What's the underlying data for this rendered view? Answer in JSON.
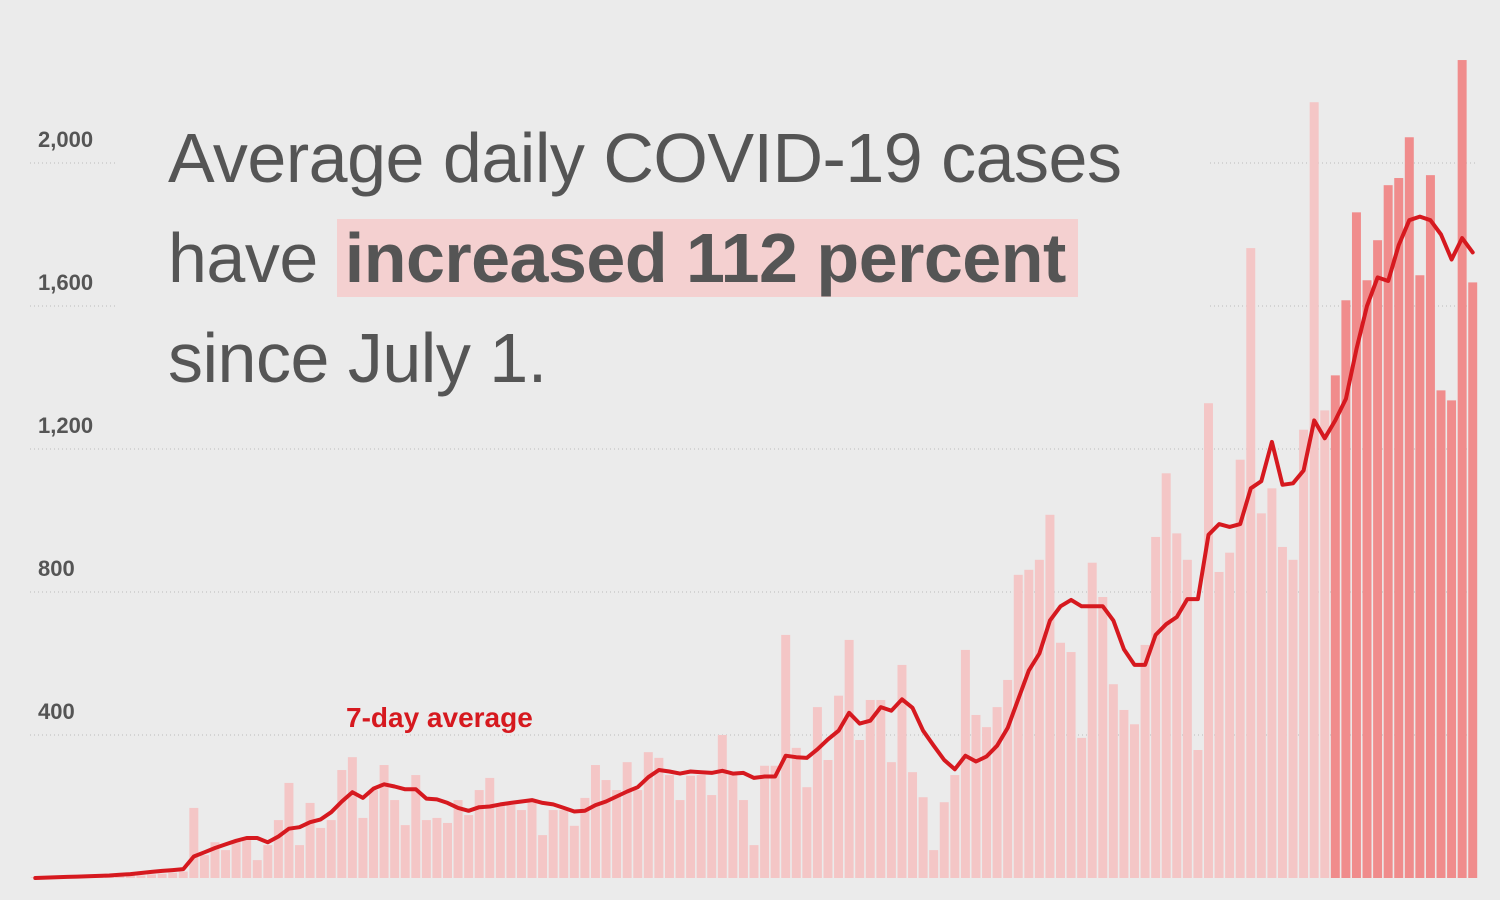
{
  "chart_data": {
    "type": "bar",
    "title_parts": [
      "Average daily COVID-19 cases",
      "have",
      "increased 112 percent",
      "since July 1."
    ],
    "annotation": "7-day average",
    "ylim": [
      0,
      2400
    ],
    "yticks": [
      400,
      800,
      {
        "value": 1200,
        "label": "1,200"
      },
      {
        "value": 1600,
        "label": "1,600"
      },
      {
        "value": 2000,
        "label": "2,000"
      }
    ],
    "grid": true,
    "series": [
      {
        "type": "bar",
        "color": "#f4c6c6",
        "values": [
          2,
          3,
          2,
          4,
          3,
          5,
          4,
          6,
          5,
          8,
          7,
          10,
          12,
          15,
          18,
          196,
          64,
          100,
          78,
          106,
          112,
          50,
          92,
          162,
          266,
          92,
          210,
          140,
          162,
          302,
          338,
          168,
          246,
          316,
          218,
          148,
          288,
          162,
          168,
          154,
          218,
          176,
          246,
          280,
          204,
          204,
          190,
          218,
          120,
          190,
          190,
          146,
          224,
          316,
          274,
          246,
          324,
          246,
          352,
          336,
          288,
          218,
          286,
          288,
          232,
          400,
          288,
          218,
          92,
          314,
          314,
          680,
          364,
          254,
          478,
          330,
          510,
          666,
          386,
          498,
          498,
          324,
          596,
          296,
          226,
          78,
          212,
          288,
          638,
          456,
          422,
          478,
          554,
          848,
          862,
          890,
          1016,
          658,
          632,
          392,
          882,
          786,
          542,
          470,
          430,
          652,
          954,
          1132,
          964,
          890,
          358,
          1328,
          856,
          910,
          1170,
          1762,
          1020,
          1090,
          926,
          890,
          1254,
          2170,
          1308,
          null,
          null,
          null,
          null,
          null,
          null,
          null,
          null,
          null,
          null,
          null,
          null,
          null,
          null
        ]
      },
      {
        "type": "bar",
        "color": "#f08c8c",
        "values": [
          null,
          null,
          null,
          null,
          null,
          null,
          null,
          null,
          null,
          null,
          null,
          null,
          null,
          null,
          null,
          null,
          null,
          null,
          null,
          null,
          null,
          null,
          null,
          null,
          null,
          null,
          null,
          null,
          null,
          null,
          null,
          null,
          null,
          null,
          null,
          null,
          null,
          null,
          null,
          null,
          null,
          null,
          null,
          null,
          null,
          null,
          null,
          null,
          null,
          null,
          null,
          null,
          null,
          null,
          null,
          null,
          null,
          null,
          null,
          null,
          null,
          null,
          null,
          null,
          null,
          null,
          null,
          null,
          null,
          null,
          null,
          null,
          null,
          null,
          null,
          null,
          null,
          null,
          null,
          null,
          null,
          null,
          null,
          null,
          null,
          null,
          null,
          null,
          null,
          null,
          null,
          null,
          null,
          null,
          null,
          null,
          null,
          null,
          null,
          null,
          null,
          null,
          null,
          null,
          null,
          null,
          null,
          null,
          null,
          null,
          null,
          null,
          null,
          null,
          null,
          null,
          null,
          null,
          null,
          null,
          null,
          null,
          null,
          1406,
          1616,
          1862,
          1672,
          1784,
          1938,
          1958,
          2072,
          1686,
          1966,
          1364,
          1336,
          2288,
          1666
        ]
      },
      {
        "type": "line",
        "color": "#d6191f",
        "values": [
          0,
          1,
          2,
          3,
          4,
          5,
          6,
          7,
          9,
          11,
          14,
          17,
          20,
          22,
          25,
          60,
          72,
          84,
          94,
          104,
          112,
          112,
          100,
          116,
          138,
          142,
          156,
          164,
          184,
          214,
          240,
          224,
          250,
          262,
          256,
          248,
          248,
          222,
          220,
          210,
          196,
          188,
          198,
          200,
          206,
          210,
          214,
          218,
          210,
          206,
          196,
          186,
          188,
          204,
          214,
          228,
          242,
          254,
          282,
          302,
          298,
          292,
          298,
          296,
          294,
          300,
          292,
          294,
          280,
          284,
          284,
          342,
          338,
          336,
          360,
          388,
          412,
          462,
          432,
          440,
          478,
          468,
          500,
          476,
          412,
          370,
          330,
          304,
          342,
          326,
          340,
          370,
          420,
          500,
          580,
          628,
          720,
          760,
          778,
          760,
          760,
          760,
          720,
          640,
          596,
          596,
          680,
          710,
          730,
          780,
          780,
          960,
          990,
          982,
          990,
          1090,
          1110,
          1220,
          1100,
          1104,
          1140,
          1280,
          1230,
          1280,
          1340,
          1480,
          1600,
          1680,
          1670,
          1770,
          1840,
          1850,
          1840,
          1800,
          1730,
          1790,
          1750
        ]
      }
    ]
  }
}
